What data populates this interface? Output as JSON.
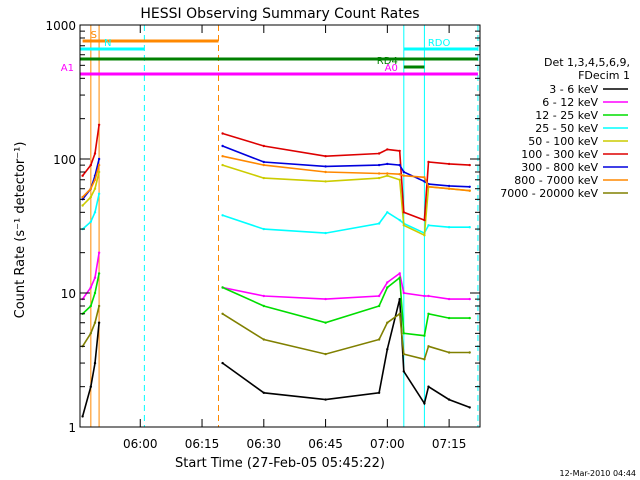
{
  "chart_data": {
    "type": "line",
    "title": "HESSI Observing Summary Count Rates",
    "xlabel": "Start Time (27-Feb-05 05:45:22)",
    "ylabel": "Count Rate (s⁻¹ detector⁻¹)",
    "y_scale": "log",
    "ylim": [
      1,
      1000
    ],
    "xlim": [
      "05:45:22",
      "07:22:30"
    ],
    "x_ticks": [
      "06:00",
      "06:15",
      "06:30",
      "06:45",
      "07:00",
      "07:15"
    ],
    "y_ticks": [
      "1",
      "10",
      "100",
      "1000"
    ],
    "grid": false,
    "legend_position": "right",
    "legend_header": [
      "Det 1,3,4,5,6,9,",
      "FDecim 1"
    ],
    "timestamp": "12-Mar-2010 04:44",
    "series": [
      {
        "name": "3 - 6 keV",
        "color": "#000000",
        "x": [
          "05:46",
          "05:48",
          "05:49",
          "05:50",
          "06:20",
          "06:30",
          "06:45",
          "06:58",
          "07:00",
          "07:03",
          "07:04",
          "07:09",
          "07:10",
          "07:15",
          "07:20"
        ],
        "values": [
          1.2,
          2.0,
          3.0,
          6.0,
          3.0,
          1.8,
          1.6,
          1.8,
          3.8,
          9.0,
          2.6,
          1.5,
          2.0,
          1.6,
          1.4
        ]
      },
      {
        "name": "6 - 12 keV",
        "color": "#ff00ff",
        "x": [
          "05:46",
          "05:48",
          "05:49",
          "05:50",
          "06:20",
          "06:30",
          "06:45",
          "06:58",
          "07:00",
          "07:03",
          "07:04",
          "07:09",
          "07:10",
          "07:15",
          "07:20"
        ],
        "values": [
          9,
          11,
          13,
          20,
          11,
          9.5,
          9,
          9.5,
          12,
          14,
          10,
          9.5,
          9.5,
          9,
          9
        ]
      },
      {
        "name": "12 - 25 keV",
        "color": "#00dd00",
        "x": [
          "05:46",
          "05:48",
          "05:49",
          "05:50",
          "06:20",
          "06:30",
          "06:45",
          "06:58",
          "07:00",
          "07:03",
          "07:04",
          "07:09",
          "07:10",
          "07:15",
          "07:20"
        ],
        "values": [
          7,
          8,
          10,
          14,
          11,
          8,
          6,
          8,
          11,
          13,
          5,
          4.8,
          7,
          6.5,
          6.5
        ]
      },
      {
        "name": "25 - 50 keV",
        "color": "#00ffff",
        "x": [
          "05:46",
          "05:48",
          "05:49",
          "05:50",
          "06:20",
          "06:30",
          "06:45",
          "06:58",
          "07:00",
          "07:03",
          "07:04",
          "07:09",
          "07:10",
          "07:15",
          "07:20"
        ],
        "values": [
          30,
          34,
          40,
          55,
          38,
          30,
          28,
          33,
          40,
          35,
          33,
          28,
          32,
          31,
          31
        ]
      },
      {
        "name": "50 - 100 keV",
        "color": "#cccc00",
        "x": [
          "05:46",
          "05:48",
          "05:49",
          "05:50",
          "06:20",
          "06:30",
          "06:45",
          "06:58",
          "07:00",
          "07:03",
          "07:04",
          "07:09",
          "07:10",
          "07:15",
          "07:20"
        ],
        "values": [
          45,
          52,
          60,
          80,
          90,
          72,
          68,
          72,
          75,
          70,
          32,
          27,
          62,
          60,
          58
        ]
      },
      {
        "name": "100 - 300 keV",
        "color": "#dd0000",
        "x": [
          "05:46",
          "05:48",
          "05:49",
          "05:50",
          "06:20",
          "06:30",
          "06:45",
          "06:58",
          "07:00",
          "07:03",
          "07:04",
          "07:09",
          "07:10",
          "07:15",
          "07:20"
        ],
        "values": [
          75,
          90,
          110,
          180,
          155,
          125,
          105,
          110,
          118,
          115,
          40,
          35,
          95,
          92,
          90
        ]
      },
      {
        "name": "300 - 800 keV",
        "color": "#0000dd",
        "x": [
          "05:46",
          "05:48",
          "05:49",
          "05:50",
          "06:20",
          "06:30",
          "06:45",
          "06:58",
          "07:00",
          "07:03",
          "07:04",
          "07:09",
          "07:10",
          "07:15",
          "07:20"
        ],
        "values": [
          50,
          60,
          75,
          100,
          125,
          95,
          88,
          90,
          92,
          90,
          80,
          68,
          65,
          63,
          62
        ]
      },
      {
        "name": "800 - 7000 keV",
        "color": "#ff8800",
        "x": [
          "05:46",
          "05:48",
          "05:49",
          "05:50",
          "06:20",
          "06:30",
          "06:45",
          "06:58",
          "07:00",
          "07:03",
          "07:04",
          "07:09",
          "07:10",
          "07:15",
          "07:20"
        ],
        "values": [
          52,
          60,
          70,
          90,
          105,
          90,
          80,
          78,
          78,
          77,
          75,
          73,
          62,
          60,
          58
        ]
      },
      {
        "name": "7000 - 20000 keV",
        "color": "#808000",
        "x": [
          "05:46",
          "05:48",
          "05:49",
          "05:50",
          "06:20",
          "06:30",
          "06:45",
          "06:58",
          "07:00",
          "07:03",
          "07:04",
          "07:09",
          "07:10",
          "07:15",
          "07:20"
        ],
        "values": [
          4,
          5,
          6,
          8,
          7,
          4.5,
          3.5,
          4.5,
          6,
          7,
          3.5,
          3.2,
          4.0,
          3.6,
          3.6
        ]
      }
    ],
    "flag_bars": [
      {
        "label": "S",
        "color": "#ff8800",
        "start": "05:46",
        "end": "06:19"
      },
      {
        "label": "N",
        "color": "#00ffff",
        "start": "05:45:22",
        "end": "06:01"
      },
      {
        "label": "RDO",
        "color": "#00ffff",
        "start": "07:04",
        "end": "07:22"
      },
      {
        "label": "",
        "color": "#008000",
        "start": "05:45:22",
        "end": "07:22"
      },
      {
        "label": "RD4",
        "color": "#008000",
        "start": "07:04",
        "end": "07:09"
      },
      {
        "label": "A0",
        "color": "#ff00ff",
        "start": "07:04",
        "end": "07:09"
      },
      {
        "label": "A1",
        "color": "#ff00ff",
        "start": "05:45:22",
        "end": "07:22"
      }
    ],
    "vertical_markers": [
      {
        "time": "05:48",
        "color": "#ff8800",
        "style": "solid"
      },
      {
        "time": "05:50",
        "color": "#ff8800",
        "style": "solid"
      },
      {
        "time": "06:01",
        "color": "#00ffff",
        "style": "dashed"
      },
      {
        "time": "06:19",
        "color": "#ff8800",
        "style": "dashed"
      },
      {
        "time": "07:04",
        "color": "#00ffff",
        "style": "solid"
      },
      {
        "time": "07:09",
        "color": "#00ffff",
        "style": "solid"
      },
      {
        "time": "07:22",
        "color": "#00ffff",
        "style": "dashed"
      }
    ]
  }
}
